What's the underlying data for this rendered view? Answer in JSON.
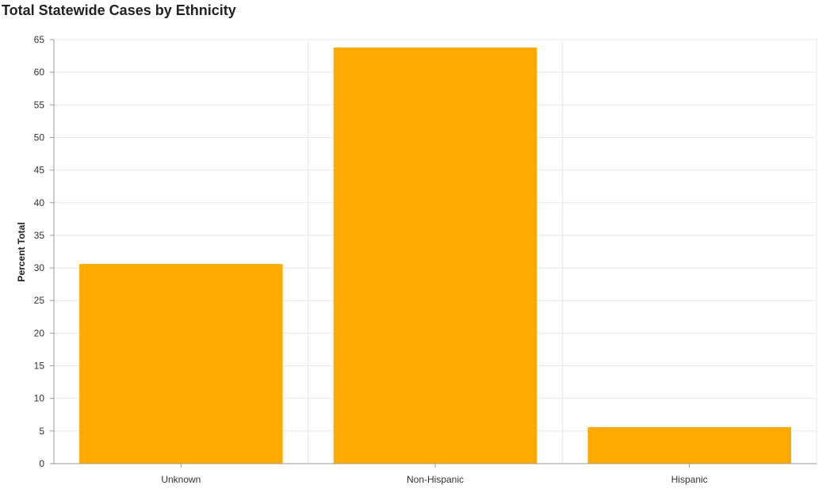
{
  "chart_data": {
    "type": "bar",
    "title": "Total Statewide Cases by Ethnicity",
    "xlabel": "",
    "ylabel": "Percent Total",
    "categories": [
      "Unknown",
      "Non-Hispanic",
      "Hispanic"
    ],
    "values": [
      30.6,
      63.8,
      5.6
    ],
    "ylim": [
      0,
      65
    ],
    "yticks": [
      0,
      5,
      10,
      15,
      20,
      25,
      30,
      35,
      40,
      45,
      50,
      55,
      60,
      65
    ],
    "grid": true,
    "legend": "none",
    "bar_color": "#FFAA00",
    "grid_color": "#e8e8e8",
    "axis_color": "#999999"
  }
}
